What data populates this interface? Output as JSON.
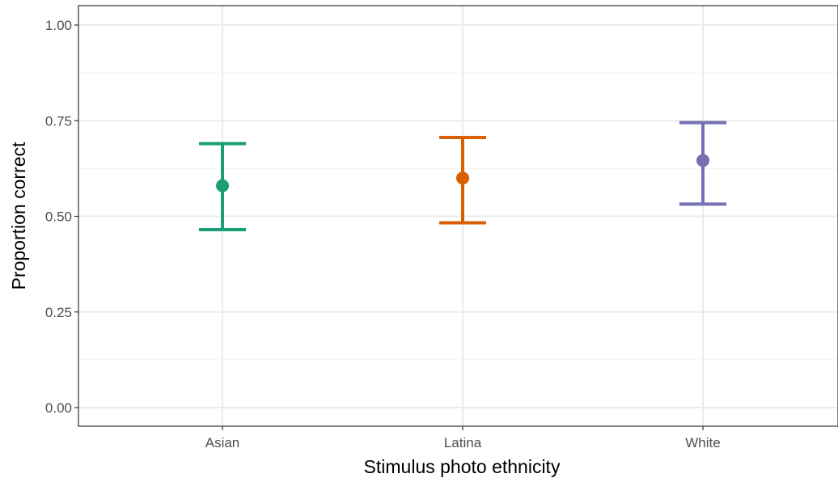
{
  "chart_data": {
    "type": "scatter",
    "subtype": "pointrange-errorbar",
    "title": "",
    "xlabel": "Stimulus photo ethnicity",
    "ylabel": "Proportion correct",
    "ylim": [
      0,
      1
    ],
    "y_ticks": [
      0,
      0.25,
      0.5,
      0.75,
      1
    ],
    "y_tick_labels": [
      "0.00",
      "0.25",
      "0.50",
      "0.75",
      "1.00"
    ],
    "categories": [
      "Asian",
      "Latina",
      "White"
    ],
    "points": [
      {
        "category": "Asian",
        "y": 0.58,
        "ymin": 0.465,
        "ymax": 0.69,
        "color": "#1b9e77"
      },
      {
        "category": "Latina",
        "y": 0.6,
        "ymin": 0.483,
        "ymax": 0.706,
        "color": "#d95f02"
      },
      {
        "category": "White",
        "y": 0.646,
        "ymin": 0.532,
        "ymax": 0.745,
        "color": "#7570b3"
      }
    ],
    "grid": true,
    "legend": "none",
    "theme": {
      "panel_border": "#333333",
      "grid_major": "#ebebeb",
      "grid_minor": "#f2f2f2",
      "tick_text": "#4d4d4d",
      "title_text": "#000000"
    }
  }
}
